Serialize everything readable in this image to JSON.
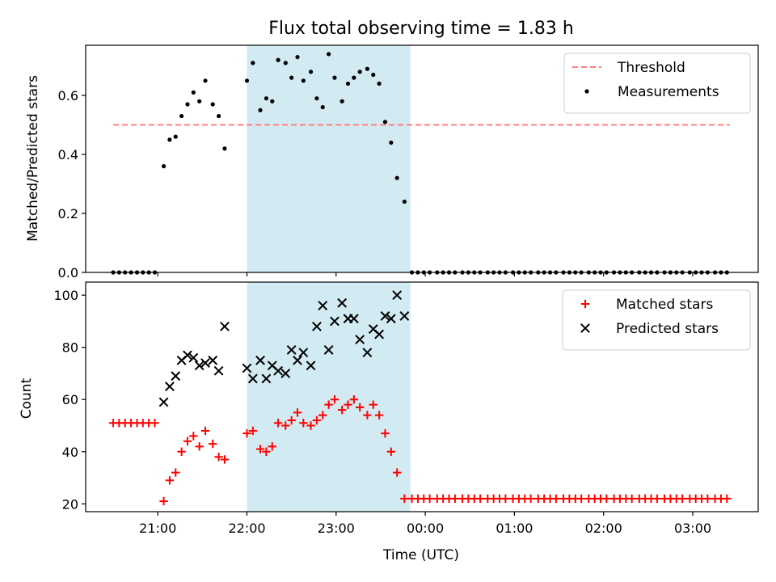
{
  "title": "Flux total observing time = 1.83 h",
  "xlabel": "Time (UTC)",
  "x_ticks": [
    "21:00",
    "22:00",
    "23:00",
    "00:00",
    "01:00",
    "02:00",
    "03:00"
  ],
  "colors": {
    "threshold": "#ff7f7f",
    "measurement": "#000000",
    "matched": "#ff0000",
    "predicted": "#000000",
    "shade": "#add8e6"
  },
  "chart_data": [
    {
      "type": "scatter",
      "ylabel": "Matched/Predicted stars",
      "ylim": [
        0,
        0.77
      ],
      "yticks": [
        "0.0",
        "0.2",
        "0.4",
        "0.6"
      ],
      "legend_position": "top-right",
      "observing_window": [
        "22:00",
        "23:50"
      ],
      "threshold": {
        "name": "Threshold",
        "value": 0.5,
        "x_range": [
          "20:30",
          "03:25"
        ]
      },
      "series": [
        {
          "name": "Measurements",
          "marker": "dot",
          "points": [
            [
              "20:30",
              0.0
            ],
            [
              "20:34",
              0.0
            ],
            [
              "20:38",
              0.0
            ],
            [
              "20:42",
              0.0
            ],
            [
              "20:46",
              0.0
            ],
            [
              "20:50",
              0.0
            ],
            [
              "20:54",
              0.0
            ],
            [
              "20:58",
              0.0
            ],
            [
              "21:04",
              0.36
            ],
            [
              "21:08",
              0.45
            ],
            [
              "21:12",
              0.46
            ],
            [
              "21:16",
              0.53
            ],
            [
              "21:20",
              0.57
            ],
            [
              "21:24",
              0.61
            ],
            [
              "21:28",
              0.58
            ],
            [
              "21:32",
              0.65
            ],
            [
              "21:37",
              0.57
            ],
            [
              "21:41",
              0.53
            ],
            [
              "21:45",
              0.42
            ],
            [
              "22:00",
              0.65
            ],
            [
              "22:04",
              0.71
            ],
            [
              "22:09",
              0.55
            ],
            [
              "22:13",
              0.59
            ],
            [
              "22:17",
              0.58
            ],
            [
              "22:21",
              0.72
            ],
            [
              "22:26",
              0.71
            ],
            [
              "22:30",
              0.66
            ],
            [
              "22:34",
              0.73
            ],
            [
              "22:38",
              0.65
            ],
            [
              "22:43",
              0.68
            ],
            [
              "22:47",
              0.59
            ],
            [
              "22:51",
              0.56
            ],
            [
              "22:55",
              0.74
            ],
            [
              "22:59",
              0.66
            ],
            [
              "23:04",
              0.58
            ],
            [
              "23:08",
              0.64
            ],
            [
              "23:12",
              0.66
            ],
            [
              "23:16",
              0.68
            ],
            [
              "23:21",
              0.69
            ],
            [
              "23:25",
              0.67
            ],
            [
              "23:29",
              0.64
            ],
            [
              "23:33",
              0.51
            ],
            [
              "23:37",
              0.44
            ],
            [
              "23:41",
              0.32
            ],
            [
              "23:46",
              0.24
            ],
            [
              "23:51",
              0.0
            ],
            [
              "23:55",
              0.0
            ],
            [
              "23:59",
              0.0
            ],
            [
              "00:03",
              0.0
            ],
            [
              "00:08",
              0.0
            ],
            [
              "00:12",
              0.0
            ],
            [
              "00:16",
              0.0
            ],
            [
              "00:20",
              0.0
            ],
            [
              "00:25",
              0.0
            ],
            [
              "00:29",
              0.0
            ],
            [
              "00:33",
              0.0
            ],
            [
              "00:37",
              0.0
            ],
            [
              "00:42",
              0.0
            ],
            [
              "00:46",
              0.0
            ],
            [
              "00:50",
              0.0
            ],
            [
              "00:54",
              0.0
            ],
            [
              "00:59",
              0.0
            ],
            [
              "01:03",
              0.0
            ],
            [
              "01:07",
              0.0
            ],
            [
              "01:11",
              0.0
            ],
            [
              "01:16",
              0.0
            ],
            [
              "01:20",
              0.0
            ],
            [
              "01:24",
              0.0
            ],
            [
              "01:28",
              0.0
            ],
            [
              "01:33",
              0.0
            ],
            [
              "01:37",
              0.0
            ],
            [
              "01:41",
              0.0
            ],
            [
              "01:45",
              0.0
            ],
            [
              "01:50",
              0.0
            ],
            [
              "01:54",
              0.0
            ],
            [
              "01:58",
              0.0
            ],
            [
              "02:02",
              0.0
            ],
            [
              "02:07",
              0.0
            ],
            [
              "02:11",
              0.0
            ],
            [
              "02:15",
              0.0
            ],
            [
              "02:19",
              0.0
            ],
            [
              "02:24",
              0.0
            ],
            [
              "02:28",
              0.0
            ],
            [
              "02:32",
              0.0
            ],
            [
              "02:36",
              0.0
            ],
            [
              "02:41",
              0.0
            ],
            [
              "02:45",
              0.0
            ],
            [
              "02:49",
              0.0
            ],
            [
              "02:53",
              0.0
            ],
            [
              "02:58",
              0.0
            ],
            [
              "03:02",
              0.0
            ],
            [
              "03:06",
              0.0
            ],
            [
              "03:10",
              0.0
            ],
            [
              "03:15",
              0.0
            ],
            [
              "03:19",
              0.0
            ],
            [
              "03:23",
              0.0
            ]
          ]
        }
      ]
    },
    {
      "type": "scatter",
      "ylabel": "Count",
      "ylim": [
        17,
        105
      ],
      "yticks": [
        "20",
        "40",
        "60",
        "80",
        "100"
      ],
      "legend_position": "top-right",
      "observing_window": [
        "22:00",
        "23:50"
      ],
      "series": [
        {
          "name": "Matched stars",
          "marker": "plus",
          "points": [
            [
              "20:30",
              51
            ],
            [
              "20:34",
              51
            ],
            [
              "20:38",
              51
            ],
            [
              "20:42",
              51
            ],
            [
              "20:46",
              51
            ],
            [
              "20:50",
              51
            ],
            [
              "20:54",
              51
            ],
            [
              "20:58",
              51
            ],
            [
              "21:04",
              21
            ],
            [
              "21:08",
              29
            ],
            [
              "21:12",
              32
            ],
            [
              "21:16",
              40
            ],
            [
              "21:20",
              44
            ],
            [
              "21:24",
              46
            ],
            [
              "21:28",
              42
            ],
            [
              "21:32",
              48
            ],
            [
              "21:37",
              43
            ],
            [
              "21:41",
              38
            ],
            [
              "21:45",
              37
            ],
            [
              "22:00",
              47
            ],
            [
              "22:04",
              48
            ],
            [
              "22:09",
              41
            ],
            [
              "22:13",
              40
            ],
            [
              "22:17",
              42
            ],
            [
              "22:21",
              51
            ],
            [
              "22:26",
              50
            ],
            [
              "22:30",
              52
            ],
            [
              "22:34",
              55
            ],
            [
              "22:38",
              51
            ],
            [
              "22:43",
              50
            ],
            [
              "22:47",
              52
            ],
            [
              "22:51",
              54
            ],
            [
              "22:55",
              58
            ],
            [
              "22:59",
              60
            ],
            [
              "23:04",
              56
            ],
            [
              "23:08",
              58
            ],
            [
              "23:12",
              60
            ],
            [
              "23:16",
              57
            ],
            [
              "23:21",
              54
            ],
            [
              "23:25",
              58
            ],
            [
              "23:29",
              54
            ],
            [
              "23:33",
              47
            ],
            [
              "23:37",
              40
            ],
            [
              "23:41",
              32
            ],
            [
              "23:46",
              22
            ],
            [
              "23:51",
              22
            ],
            [
              "23:55",
              22
            ],
            [
              "23:59",
              22
            ],
            [
              "00:03",
              22
            ],
            [
              "00:08",
              22
            ],
            [
              "00:12",
              22
            ],
            [
              "00:16",
              22
            ],
            [
              "00:20",
              22
            ],
            [
              "00:25",
              22
            ],
            [
              "00:29",
              22
            ],
            [
              "00:33",
              22
            ],
            [
              "00:37",
              22
            ],
            [
              "00:42",
              22
            ],
            [
              "00:46",
              22
            ],
            [
              "00:50",
              22
            ],
            [
              "00:54",
              22
            ],
            [
              "00:59",
              22
            ],
            [
              "01:03",
              22
            ],
            [
              "01:07",
              22
            ],
            [
              "01:11",
              22
            ],
            [
              "01:16",
              22
            ],
            [
              "01:20",
              22
            ],
            [
              "01:24",
              22
            ],
            [
              "01:28",
              22
            ],
            [
              "01:33",
              22
            ],
            [
              "01:37",
              22
            ],
            [
              "01:41",
              22
            ],
            [
              "01:45",
              22
            ],
            [
              "01:50",
              22
            ],
            [
              "01:54",
              22
            ],
            [
              "01:58",
              22
            ],
            [
              "02:02",
              22
            ],
            [
              "02:07",
              22
            ],
            [
              "02:11",
              22
            ],
            [
              "02:15",
              22
            ],
            [
              "02:19",
              22
            ],
            [
              "02:24",
              22
            ],
            [
              "02:28",
              22
            ],
            [
              "02:32",
              22
            ],
            [
              "02:36",
              22
            ],
            [
              "02:41",
              22
            ],
            [
              "02:45",
              22
            ],
            [
              "02:49",
              22
            ],
            [
              "02:53",
              22
            ],
            [
              "02:58",
              22
            ],
            [
              "03:02",
              22
            ],
            [
              "03:06",
              22
            ],
            [
              "03:10",
              22
            ],
            [
              "03:15",
              22
            ],
            [
              "03:19",
              22
            ],
            [
              "03:23",
              22
            ]
          ]
        },
        {
          "name": "Predicted stars",
          "marker": "x",
          "points": [
            [
              "21:04",
              59
            ],
            [
              "21:08",
              65
            ],
            [
              "21:12",
              69
            ],
            [
              "21:16",
              75
            ],
            [
              "21:20",
              77
            ],
            [
              "21:24",
              76
            ],
            [
              "21:28",
              73
            ],
            [
              "21:32",
              74
            ],
            [
              "21:37",
              75
            ],
            [
              "21:41",
              71
            ],
            [
              "21:45",
              88
            ],
            [
              "22:00",
              72
            ],
            [
              "22:04",
              68
            ],
            [
              "22:09",
              75
            ],
            [
              "22:13",
              68
            ],
            [
              "22:17",
              73
            ],
            [
              "22:21",
              71
            ],
            [
              "22:26",
              70
            ],
            [
              "22:30",
              79
            ],
            [
              "22:34",
              75
            ],
            [
              "22:38",
              78
            ],
            [
              "22:43",
              73
            ],
            [
              "22:47",
              88
            ],
            [
              "22:51",
              96
            ],
            [
              "22:55",
              79
            ],
            [
              "22:59",
              90
            ],
            [
              "23:04",
              97
            ],
            [
              "23:08",
              91
            ],
            [
              "23:12",
              91
            ],
            [
              "23:16",
              83
            ],
            [
              "23:21",
              78
            ],
            [
              "23:25",
              87
            ],
            [
              "23:29",
              85
            ],
            [
              "23:33",
              92
            ],
            [
              "23:37",
              91
            ],
            [
              "23:41",
              100
            ],
            [
              "23:46",
              92
            ]
          ]
        }
      ]
    }
  ]
}
